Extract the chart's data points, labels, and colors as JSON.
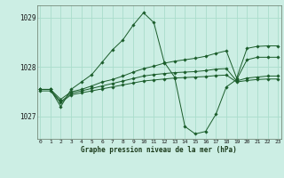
{
  "bg_color": "#cceee4",
  "grid_color": "#aaddcc",
  "line_color": "#1a5c2a",
  "marker_color": "#1a5c2a",
  "xlabel": "Graphe pression niveau de la mer (hPa)",
  "ylim": [
    1026.55,
    1029.25
  ],
  "yticks": [
    1027,
    1028,
    1029
  ],
  "xlim": [
    -0.3,
    23.3
  ],
  "xticks": [
    0,
    1,
    2,
    3,
    4,
    5,
    6,
    7,
    8,
    9,
    10,
    11,
    12,
    13,
    14,
    15,
    16,
    17,
    18,
    19,
    20,
    21,
    22,
    23
  ],
  "series": [
    {
      "x": [
        0,
        1,
        2,
        3,
        4,
        5,
        6,
        7,
        8,
        9,
        10,
        11,
        12,
        13,
        14,
        15,
        16,
        17,
        18,
        19,
        20,
        21,
        22,
        23
      ],
      "y": [
        1027.55,
        1027.55,
        1027.2,
        1027.55,
        1027.7,
        1027.85,
        1028.1,
        1028.35,
        1028.55,
        1028.85,
        1029.1,
        1028.9,
        1028.1,
        1027.8,
        1026.8,
        1026.65,
        1026.7,
        1027.05,
        1027.6,
        1027.75,
        1028.15,
        1028.2,
        1028.2,
        1028.2
      ]
    },
    {
      "x": [
        0,
        1,
        2,
        3,
        4,
        5,
        6,
        7,
        8,
        9,
        10,
        11,
        12,
        13,
        14,
        15,
        16,
        17,
        18,
        19,
        20,
        21,
        22,
        23
      ],
      "y": [
        1027.55,
        1027.55,
        1027.35,
        1027.5,
        1027.55,
        1027.62,
        1027.7,
        1027.75,
        1027.82,
        1027.9,
        1027.97,
        1028.02,
        1028.08,
        1028.12,
        1028.15,
        1028.18,
        1028.22,
        1028.28,
        1028.33,
        1027.78,
        1028.38,
        1028.42,
        1028.43,
        1028.43
      ]
    },
    {
      "x": [
        0,
        1,
        2,
        3,
        4,
        5,
        6,
        7,
        8,
        9,
        10,
        11,
        12,
        13,
        14,
        15,
        16,
        17,
        18,
        19,
        20,
        21,
        22,
        23
      ],
      "y": [
        1027.55,
        1027.55,
        1027.3,
        1027.47,
        1027.52,
        1027.57,
        1027.62,
        1027.67,
        1027.72,
        1027.77,
        1027.82,
        1027.85,
        1027.87,
        1027.89,
        1027.9,
        1027.91,
        1027.93,
        1027.96,
        1027.97,
        1027.72,
        1027.78,
        1027.8,
        1027.82,
        1027.82
      ]
    },
    {
      "x": [
        0,
        1,
        2,
        3,
        4,
        5,
        6,
        7,
        8,
        9,
        10,
        11,
        12,
        13,
        14,
        15,
        16,
        17,
        18,
        19,
        20,
        21,
        22,
        23
      ],
      "y": [
        1027.52,
        1027.52,
        1027.28,
        1027.44,
        1027.48,
        1027.52,
        1027.56,
        1027.6,
        1027.64,
        1027.68,
        1027.72,
        1027.74,
        1027.76,
        1027.78,
        1027.79,
        1027.8,
        1027.81,
        1027.83,
        1027.84,
        1027.7,
        1027.73,
        1027.75,
        1027.76,
        1027.76
      ]
    }
  ],
  "figsize": [
    3.2,
    2.0
  ],
  "dpi": 100
}
